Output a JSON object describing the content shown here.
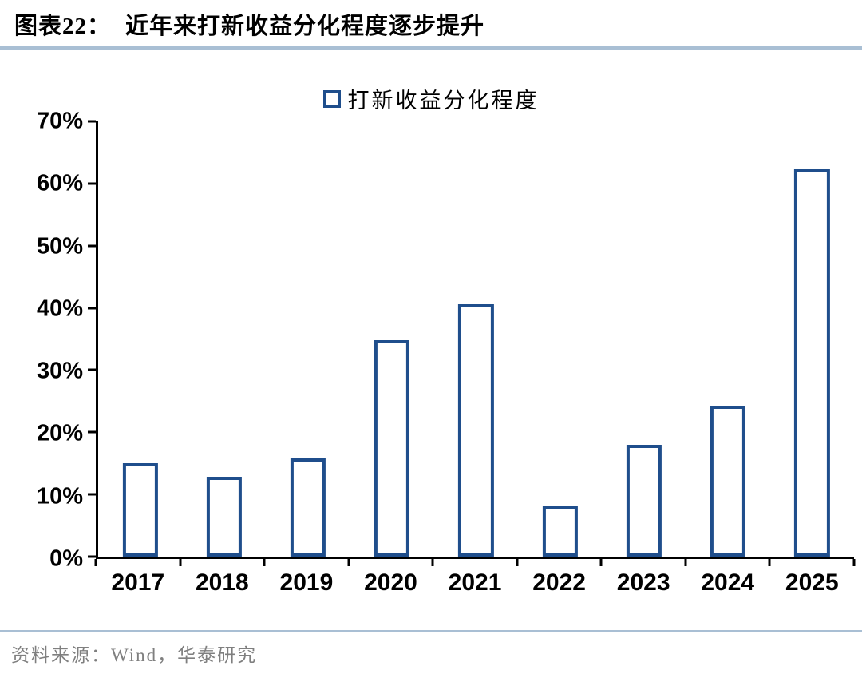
{
  "figure": {
    "number_label": "图表22：",
    "title": "近年来打新收益分化程度逐步提升"
  },
  "legend": {
    "label": "打新收益分化程度"
  },
  "chart_data": {
    "type": "bar",
    "title": "近年来打新收益分化程度逐步提升",
    "series_name": "打新收益分化程度",
    "categories": [
      "2017",
      "2018",
      "2019",
      "2020",
      "2021",
      "2022",
      "2023",
      "2024",
      "2025"
    ],
    "values": [
      15.0,
      12.8,
      15.8,
      34.8,
      40.6,
      8.2,
      18.0,
      24.3,
      62.3
    ],
    "xlabel": "",
    "ylabel": "",
    "ylim": [
      0,
      70
    ],
    "yticks": [
      0,
      10,
      20,
      30,
      40,
      50,
      60,
      70
    ],
    "ytick_suffix": "%",
    "grid": false,
    "legend_position": "top-center",
    "bar_fill": "#FFFFFF",
    "bar_border": "#1F4E8C"
  },
  "source": {
    "label": "资料来源：",
    "text": "Wind，华泰研究"
  },
  "colors": {
    "accent_navy": "#1F4E8C",
    "divider_blue": "#A9BFD4",
    "axis_black": "#000000",
    "source_gray": "#7F7F7F"
  }
}
